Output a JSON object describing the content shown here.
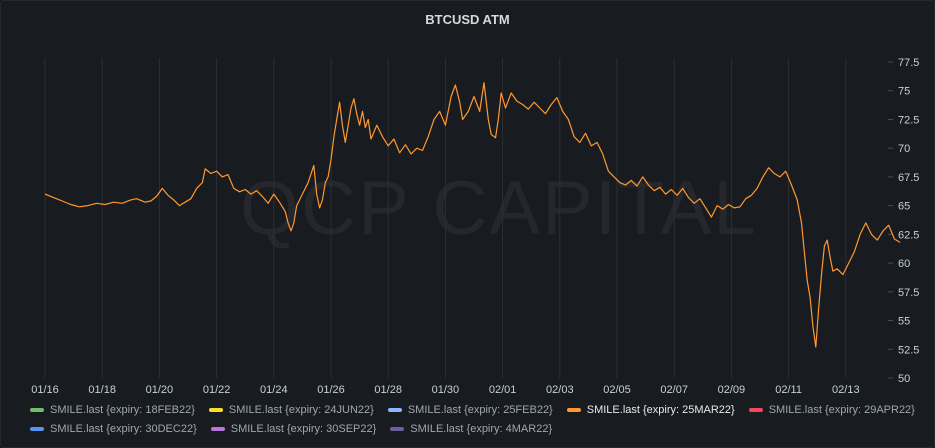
{
  "panel": {
    "title": "BTCUSD ATM",
    "watermark": "QCP CAPITAL"
  },
  "chart_data": {
    "type": "line",
    "title": "BTCUSD ATM",
    "xlabel": "",
    "ylabel": "",
    "x_tick_labels": [
      "01/16",
      "01/18",
      "01/20",
      "01/22",
      "01/24",
      "01/26",
      "01/28",
      "01/30",
      "02/01",
      "02/03",
      "02/05",
      "02/07",
      "02/09",
      "02/11",
      "02/13"
    ],
    "y_tick_labels": [
      "77.5",
      "75",
      "72.5",
      "70",
      "67.5",
      "65",
      "62.5",
      "60",
      "57.5",
      "55",
      "52.5",
      "50"
    ],
    "ylim": [
      50,
      77.5
    ],
    "x_range_days": [
      0,
      30.6
    ],
    "grid": "vertical",
    "series": [
      {
        "name": "SMILE.last {expiry: 25MAR22}",
        "color": "#ff9830",
        "points": [
          [
            0.0,
            66.0
          ],
          [
            0.3,
            65.7
          ],
          [
            0.6,
            65.4
          ],
          [
            0.9,
            65.1
          ],
          [
            1.2,
            64.9
          ],
          [
            1.5,
            65.0
          ],
          [
            1.8,
            65.2
          ],
          [
            2.1,
            65.1
          ],
          [
            2.4,
            65.3
          ],
          [
            2.7,
            65.2
          ],
          [
            3.0,
            65.5
          ],
          [
            3.2,
            65.6
          ],
          [
            3.5,
            65.3
          ],
          [
            3.7,
            65.4
          ],
          [
            3.9,
            65.8
          ],
          [
            4.1,
            66.5
          ],
          [
            4.3,
            65.9
          ],
          [
            4.5,
            65.5
          ],
          [
            4.7,
            65.0
          ],
          [
            4.9,
            65.3
          ],
          [
            5.1,
            65.6
          ],
          [
            5.3,
            66.5
          ],
          [
            5.5,
            67.0
          ],
          [
            5.6,
            68.2
          ],
          [
            5.8,
            67.8
          ],
          [
            6.0,
            68.0
          ],
          [
            6.2,
            67.5
          ],
          [
            6.4,
            67.7
          ],
          [
            6.6,
            66.5
          ],
          [
            6.8,
            66.2
          ],
          [
            7.0,
            66.4
          ],
          [
            7.2,
            66.0
          ],
          [
            7.4,
            66.3
          ],
          [
            7.6,
            65.8
          ],
          [
            7.8,
            65.2
          ],
          [
            8.0,
            66.0
          ],
          [
            8.2,
            65.3
          ],
          [
            8.4,
            64.5
          ],
          [
            8.5,
            63.5
          ],
          [
            8.6,
            62.8
          ],
          [
            8.7,
            63.5
          ],
          [
            8.8,
            65.0
          ],
          [
            9.0,
            66.0
          ],
          [
            9.2,
            67.0
          ],
          [
            9.4,
            68.5
          ],
          [
            9.5,
            66.0
          ],
          [
            9.6,
            64.8
          ],
          [
            9.7,
            65.5
          ],
          [
            9.8,
            67.0
          ],
          [
            9.9,
            67.5
          ],
          [
            10.0,
            69.0
          ],
          [
            10.1,
            71.0
          ],
          [
            10.2,
            72.5
          ],
          [
            10.3,
            74.0
          ],
          [
            10.4,
            72.0
          ],
          [
            10.5,
            70.5
          ],
          [
            10.6,
            72.0
          ],
          [
            10.7,
            73.5
          ],
          [
            10.8,
            74.3
          ],
          [
            10.9,
            73.0
          ],
          [
            11.0,
            72.0
          ],
          [
            11.1,
            73.2
          ],
          [
            11.2,
            71.8
          ],
          [
            11.3,
            72.5
          ],
          [
            11.4,
            70.8
          ],
          [
            11.6,
            72.0
          ],
          [
            11.8,
            71.0
          ],
          [
            12.0,
            70.2
          ],
          [
            12.2,
            70.8
          ],
          [
            12.4,
            69.6
          ],
          [
            12.6,
            70.3
          ],
          [
            12.8,
            69.5
          ],
          [
            13.0,
            70.0
          ],
          [
            13.2,
            69.8
          ],
          [
            13.4,
            71.0
          ],
          [
            13.6,
            72.5
          ],
          [
            13.8,
            73.2
          ],
          [
            14.0,
            72.0
          ],
          [
            14.2,
            74.5
          ],
          [
            14.35,
            75.5
          ],
          [
            14.5,
            74.0
          ],
          [
            14.6,
            72.5
          ],
          [
            14.8,
            73.2
          ],
          [
            15.0,
            74.5
          ],
          [
            15.2,
            73.2
          ],
          [
            15.35,
            75.7
          ],
          [
            15.5,
            72.5
          ],
          [
            15.6,
            71.2
          ],
          [
            15.75,
            70.9
          ],
          [
            15.85,
            72.5
          ],
          [
            15.95,
            74.8
          ],
          [
            16.1,
            73.5
          ],
          [
            16.3,
            74.8
          ],
          [
            16.5,
            74.1
          ],
          [
            16.7,
            73.8
          ],
          [
            16.9,
            73.4
          ],
          [
            17.1,
            74.0
          ],
          [
            17.3,
            73.5
          ],
          [
            17.5,
            73.0
          ],
          [
            17.7,
            73.8
          ],
          [
            17.9,
            74.4
          ],
          [
            18.1,
            73.2
          ],
          [
            18.3,
            72.5
          ],
          [
            18.5,
            71.0
          ],
          [
            18.7,
            70.5
          ],
          [
            18.9,
            71.3
          ],
          [
            19.1,
            70.2
          ],
          [
            19.3,
            70.5
          ],
          [
            19.5,
            69.5
          ],
          [
            19.7,
            68.0
          ],
          [
            19.9,
            67.5
          ],
          [
            20.1,
            67.0
          ],
          [
            20.3,
            66.8
          ],
          [
            20.5,
            67.2
          ],
          [
            20.7,
            66.7
          ],
          [
            20.9,
            67.5
          ],
          [
            21.1,
            66.8
          ],
          [
            21.3,
            66.3
          ],
          [
            21.5,
            66.6
          ],
          [
            21.7,
            66.0
          ],
          [
            21.9,
            66.4
          ],
          [
            22.1,
            65.9
          ],
          [
            22.3,
            66.5
          ],
          [
            22.5,
            65.7
          ],
          [
            22.7,
            65.2
          ],
          [
            22.9,
            65.6
          ],
          [
            23.1,
            64.8
          ],
          [
            23.3,
            64.0
          ],
          [
            23.5,
            65.0
          ],
          [
            23.7,
            64.7
          ],
          [
            23.9,
            65.1
          ],
          [
            24.1,
            64.8
          ],
          [
            24.3,
            64.9
          ],
          [
            24.5,
            65.6
          ],
          [
            24.7,
            65.9
          ],
          [
            24.9,
            66.5
          ],
          [
            25.1,
            67.5
          ],
          [
            25.3,
            68.3
          ],
          [
            25.5,
            67.8
          ],
          [
            25.7,
            67.5
          ],
          [
            25.9,
            68.0
          ],
          [
            26.1,
            66.8
          ],
          [
            26.3,
            65.5
          ],
          [
            26.45,
            63.5
          ],
          [
            26.55,
            61.0
          ],
          [
            26.65,
            58.5
          ],
          [
            26.75,
            57.0
          ],
          [
            26.85,
            54.5
          ],
          [
            26.95,
            52.7
          ],
          [
            27.05,
            56.0
          ],
          [
            27.15,
            59.0
          ],
          [
            27.25,
            61.5
          ],
          [
            27.35,
            62.0
          ],
          [
            27.45,
            60.5
          ],
          [
            27.55,
            59.3
          ],
          [
            27.7,
            59.5
          ],
          [
            27.9,
            59.0
          ],
          [
            28.1,
            60.0
          ],
          [
            28.3,
            61.0
          ],
          [
            28.5,
            62.5
          ],
          [
            28.7,
            63.5
          ],
          [
            28.9,
            62.5
          ],
          [
            29.1,
            62.0
          ],
          [
            29.3,
            62.8
          ],
          [
            29.5,
            63.3
          ],
          [
            29.7,
            62.1
          ],
          [
            29.9,
            61.8
          ]
        ]
      }
    ]
  },
  "legend": {
    "rows": [
      [
        {
          "label": "SMILE.last {expiry: 18FEB22}",
          "color": "#73bf69",
          "active": false
        },
        {
          "label": "SMILE.last {expiry: 24JUN22}",
          "color": "#fade2a",
          "active": false
        },
        {
          "label": "SMILE.last {expiry: 25FEB22}",
          "color": "#8ab8ff",
          "active": false
        },
        {
          "label": "SMILE.last {expiry: 25MAR22}",
          "color": "#ff9830",
          "active": true
        },
        {
          "label": "SMILE.last {expiry: 29APR22}",
          "color": "#f2495c",
          "active": false
        }
      ],
      [
        {
          "label": "SMILE.last {expiry: 30DEC22}",
          "color": "#5794f2",
          "active": false
        },
        {
          "label": "SMILE.last {expiry: 30SEP22}",
          "color": "#b877d9",
          "active": false
        },
        {
          "label": "SMILE.last {expiry: 4MAR22}",
          "color": "#705da0",
          "active": false
        }
      ]
    ]
  }
}
